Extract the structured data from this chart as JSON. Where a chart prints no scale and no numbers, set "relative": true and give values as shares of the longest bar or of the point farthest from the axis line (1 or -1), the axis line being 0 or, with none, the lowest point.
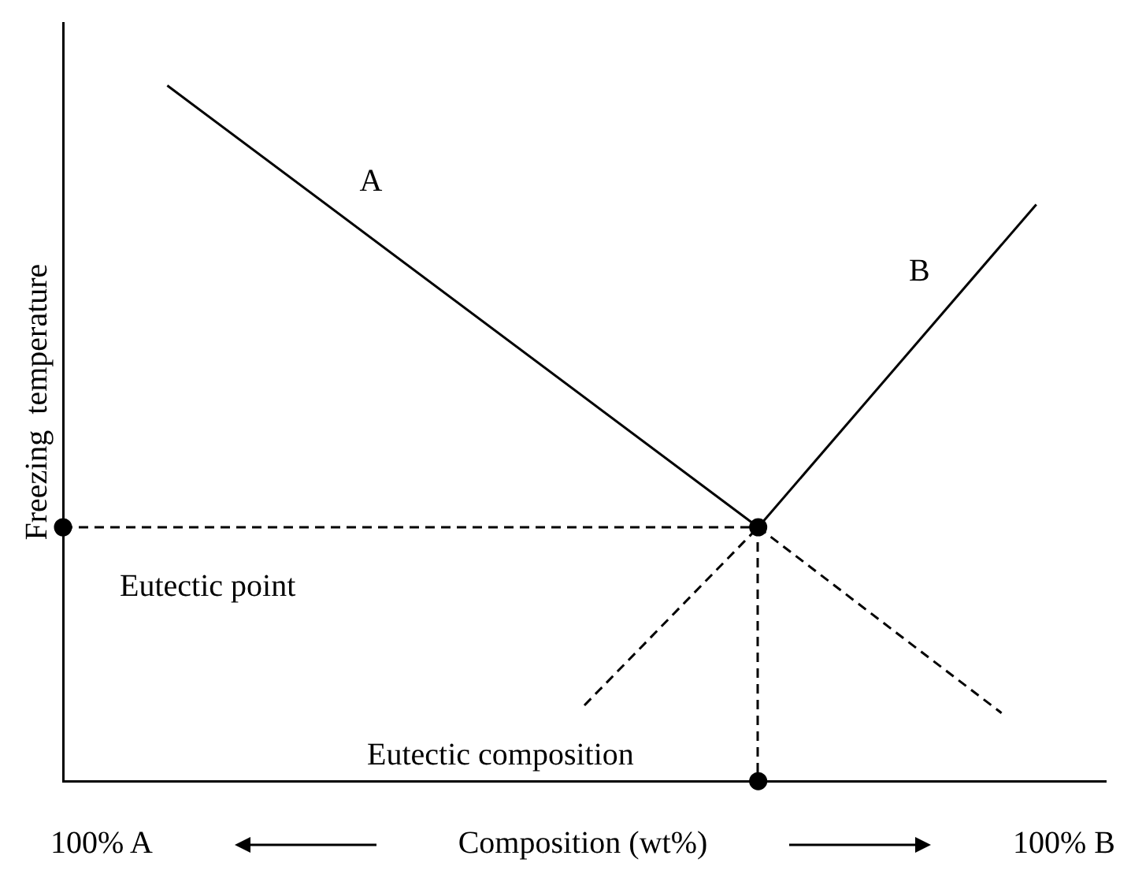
{
  "chart_data": {
    "type": "line",
    "relative": true,
    "ylabel": "Freezing  temperature",
    "xlabel": "Composition (wt%)",
    "line_style": "solid",
    "legend": false,
    "grid": false,
    "categories": [
      null,
      null,
      null,
      null,
      null,
      null,
      null,
      null,
      null,
      null,
      null,
      null,
      null,
      null,
      null,
      null,
      null,
      null,
      null,
      null,
      null,
      null,
      null,
      null,
      null,
      null,
      null,
      null,
      null,
      null,
      null
    ],
    "series": [
      {
        "name": "A",
        "color": "#000000",
        "values": [
          null,
          null,
          null,
          1,
          null,
          null,
          null,
          null,
          null,
          null,
          null,
          null,
          null,
          null,
          null,
          null,
          null,
          null,
          null,
          null,
          0.365,
          null,
          null,
          null,
          null,
          null,
          null,
          null,
          null,
          null,
          null
        ]
      },
      {
        "name": "B",
        "color": "#000000",
        "values": [
          null,
          null,
          null,
          null,
          null,
          null,
          null,
          null,
          null,
          null,
          null,
          null,
          null,
          null,
          null,
          null,
          null,
          null,
          null,
          null,
          0.365,
          null,
          null,
          null,
          null,
          null,
          null,
          null,
          0.829,
          null,
          null
        ]
      },
      {
        "color": "#000000",
        "line_style": "dashed",
        "values": [
          null,
          null,
          null,
          null,
          null,
          null,
          null,
          null,
          null,
          null,
          null,
          null,
          null,
          null,
          null,
          null,
          null,
          null,
          null,
          null,
          0.365,
          null,
          null,
          null,
          null,
          null,
          null,
          0.098,
          null,
          null,
          null
        ]
      },
      {
        "color": "#000000",
        "line_style": "dashed",
        "values": [
          null,
          null,
          null,
          null,
          null,
          null,
          null,
          null,
          null,
          null,
          null,
          null,
          null,
          null,
          null,
          0.109,
          null,
          null,
          null,
          null,
          0.365,
          null,
          null,
          null,
          null,
          null,
          null,
          null,
          null,
          null,
          null
        ]
      },
      {
        "color": "#000000",
        "line_style": "dashed",
        "marker": "circle",
        "values": [
          0.365,
          null,
          null,
          null,
          null,
          null,
          null,
          null,
          null,
          null,
          null,
          null,
          null,
          null,
          null,
          null,
          null,
          null,
          null,
          null,
          0.365,
          null,
          null,
          null,
          null,
          null,
          null,
          null,
          null,
          null,
          null
        ]
      },
      {
        "color": "#000000",
        "marker": "circle",
        "values": [
          null,
          null,
          null,
          null,
          null,
          null,
          null,
          null,
          null,
          null,
          null,
          null,
          null,
          null,
          null,
          null,
          null,
          null,
          null,
          null,
          0,
          null,
          null,
          null,
          null,
          null,
          null,
          null,
          null,
          null,
          null
        ]
      }
    ],
    "annotations": [
      "Eutectic point",
      "Eutectic composition",
      "100% A",
      "100% B"
    ]
  }
}
